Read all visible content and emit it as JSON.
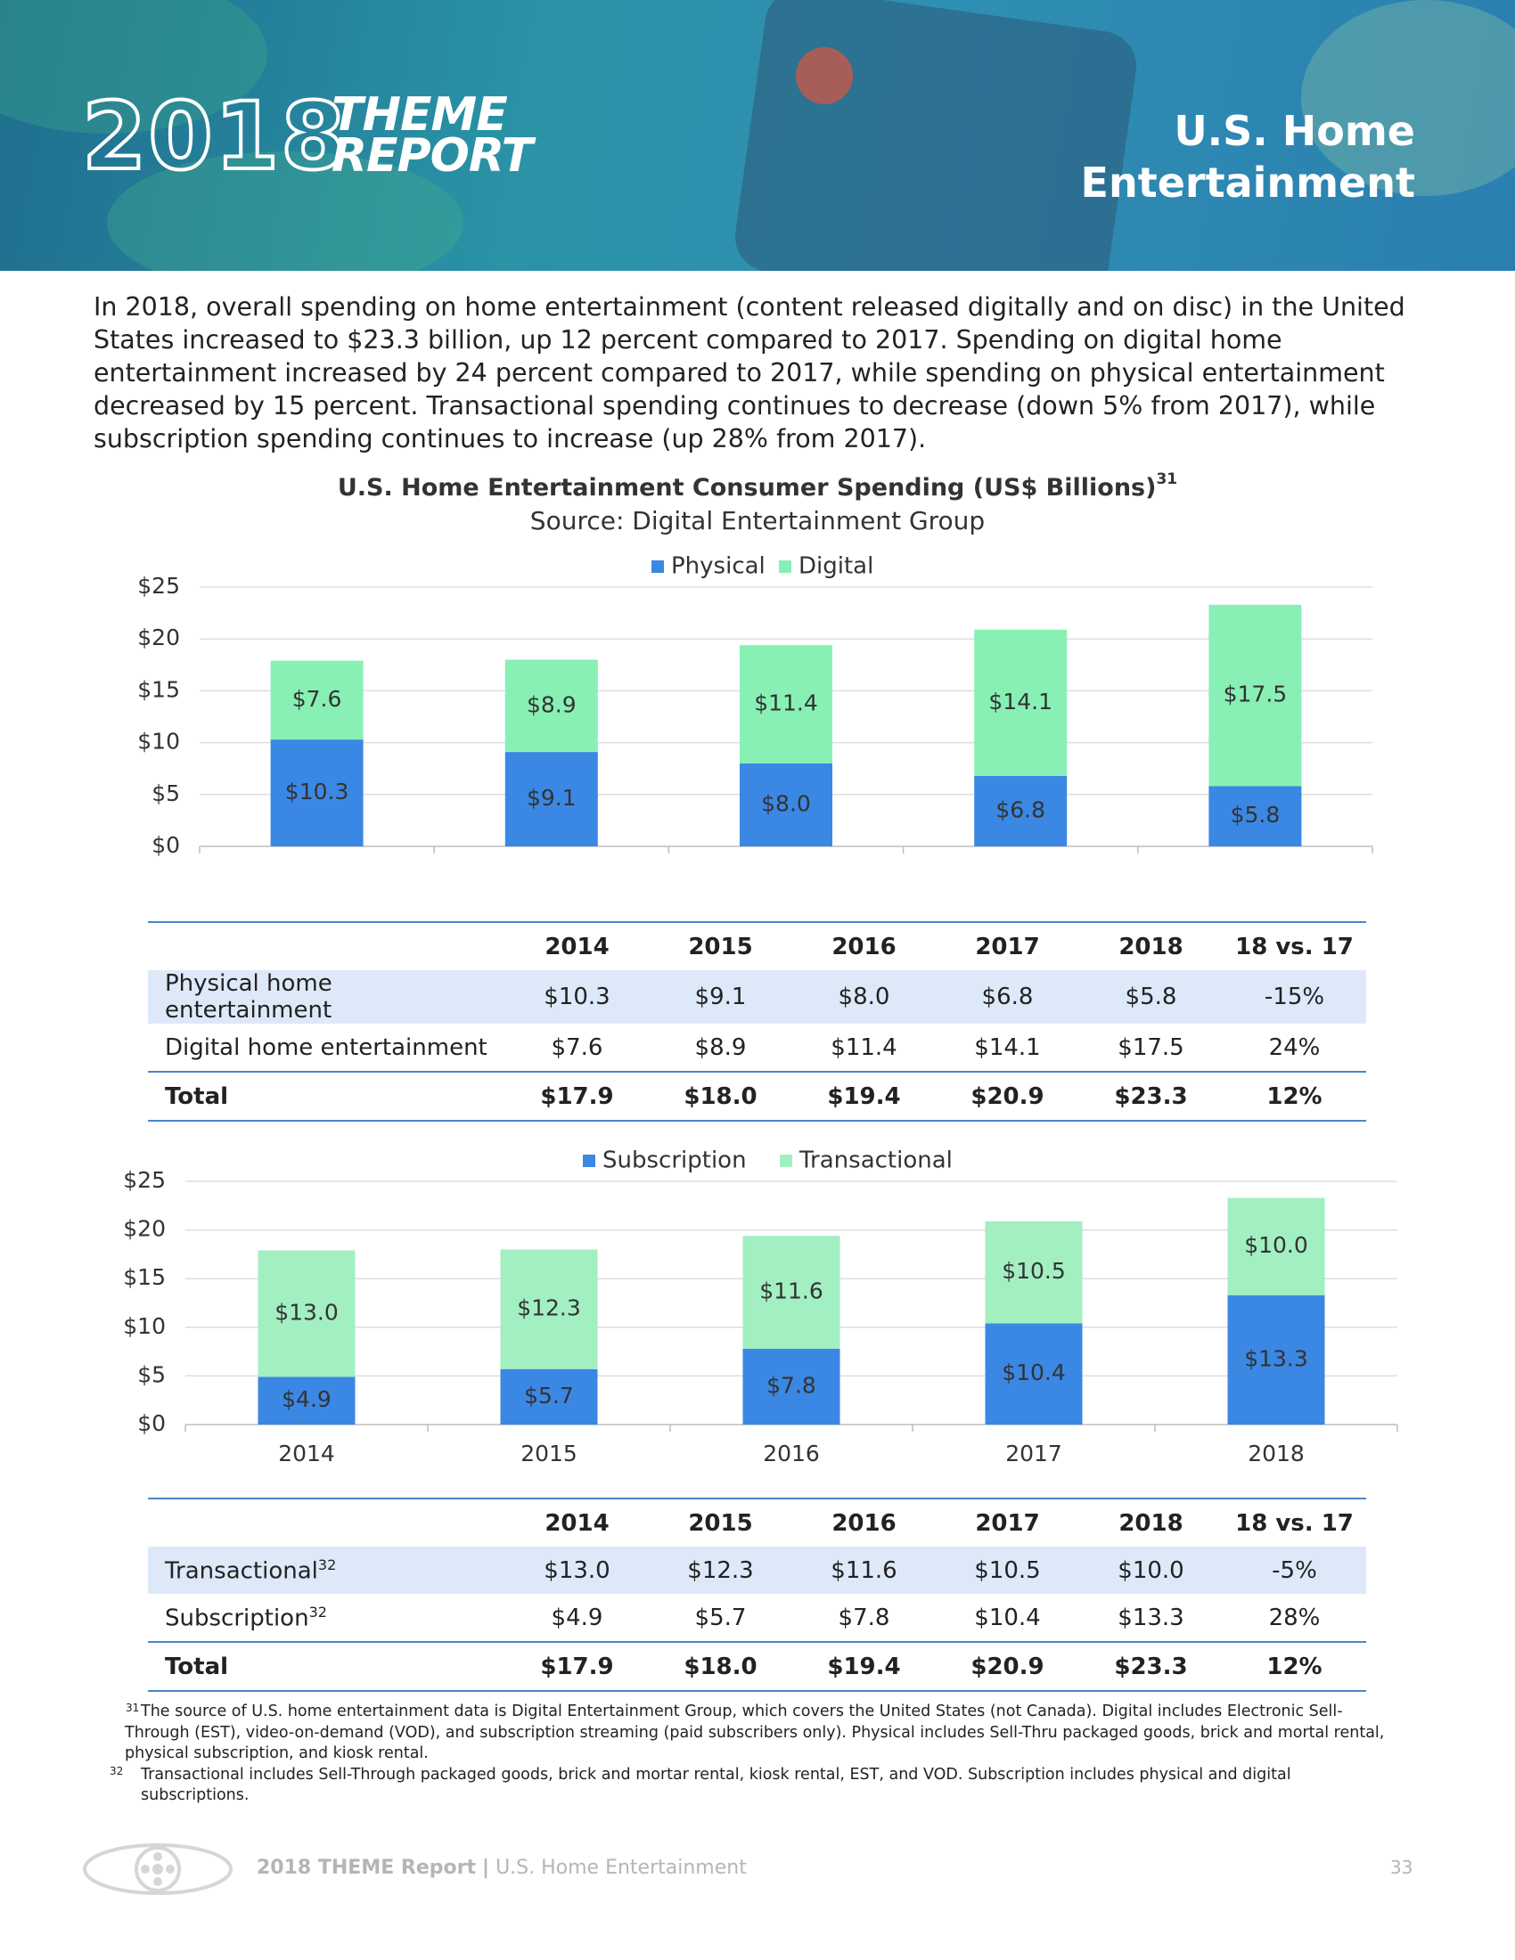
{
  "header": {
    "logo_year": "2018",
    "logo_words": [
      "THEME",
      "REPORT"
    ],
    "section_title": [
      "U.S. Home",
      "Entertainment"
    ]
  },
  "intro": "In 2018, overall spending on home entertainment (content released digitally and on disc) in the United States increased to $23.3 billion, up 12 percent compared to 2017. Spending on digital home entertainment increased by 24 percent compared to 2017, while spending on physical entertainment decreased by 15 percent. Transactional spending continues to decrease (down 5% from 2017), while subscription spending continues to increase (up 28% from 2017).",
  "chart_data": [
    {
      "type": "bar",
      "stacked": true,
      "title": "U.S. Home Entertainment Consumer Spending (US$ Billions)",
      "title_superscript": "31",
      "subtitle": "Source: Digital Entertainment Group",
      "categories": [
        null,
        null,
        null,
        null,
        null
      ],
      "series": [
        {
          "name": "Physical",
          "color": "#3b87e4",
          "values": [
            10.3,
            9.1,
            8.0,
            6.8,
            5.8
          ],
          "value_labels": [
            "$10.3",
            "$9.1",
            "$8.0",
            "$6.8",
            "$5.8"
          ]
        },
        {
          "name": "Digital",
          "color": "#88f0b4",
          "values": [
            7.6,
            8.9,
            11.4,
            14.1,
            17.5
          ],
          "value_labels": [
            "$7.6",
            "$8.9",
            "$11.4",
            "$14.1",
            "$17.5"
          ]
        }
      ],
      "ylim": [
        0,
        25
      ],
      "yticks": [
        {
          "value": 0,
          "label": "$0"
        },
        {
          "value": 5,
          "label": "$5"
        },
        {
          "value": 10,
          "label": "$10"
        },
        {
          "value": 15,
          "label": "$15"
        },
        {
          "value": 20,
          "label": "$20"
        },
        {
          "value": 25,
          "label": "$25"
        }
      ],
      "grid": true,
      "legend": "top"
    },
    {
      "type": "bar",
      "stacked": true,
      "categories": [
        "2014",
        "2015",
        "2016",
        "2017",
        "2018"
      ],
      "series": [
        {
          "name": "Subscription",
          "color": "#3b87e4",
          "values": [
            4.9,
            5.7,
            7.8,
            10.4,
            13.3
          ],
          "value_labels": [
            "$4.9",
            "$5.7",
            "$7.8",
            "$10.4",
            "$13.3"
          ]
        },
        {
          "name": "Transactional",
          "color": "#a2efc2",
          "values": [
            13.0,
            12.3,
            11.6,
            10.5,
            10.0
          ],
          "value_labels": [
            "$13.0",
            "$12.3",
            "$11.6",
            "$10.5",
            "$10.0"
          ]
        }
      ],
      "ylim": [
        0,
        25
      ],
      "yticks": [
        {
          "value": 0,
          "label": "$0"
        },
        {
          "value": 5,
          "label": "$5"
        },
        {
          "value": 10,
          "label": "$10"
        },
        {
          "value": 15,
          "label": "$15"
        },
        {
          "value": 20,
          "label": "$20"
        },
        {
          "value": 25,
          "label": "$25"
        }
      ],
      "grid": true,
      "legend": "top"
    }
  ],
  "tables": [
    {
      "columns": [
        "2014",
        "2015",
        "2016",
        "2017",
        "2018",
        "18 vs. 17"
      ],
      "rows": [
        {
          "label": "Physical home entertainment",
          "values": [
            "$10.3",
            "$9.1",
            "$8.0",
            "$6.8",
            "$5.8",
            "-15%"
          ]
        },
        {
          "label": "Digital home entertainment",
          "values": [
            "$7.6",
            "$8.9",
            "$11.4",
            "$14.1",
            "$17.5",
            "24%"
          ]
        },
        {
          "label": "Total",
          "values": [
            "$17.9",
            "$18.0",
            "$19.4",
            "$20.9",
            "$23.3",
            "12%"
          ]
        }
      ]
    },
    {
      "columns": [
        "2014",
        "2015",
        "2016",
        "2017",
        "2018",
        "18 vs. 17"
      ],
      "rows": [
        {
          "label": "Transactional",
          "note": "32",
          "values": [
            "$13.0",
            "$12.3",
            "$11.6",
            "$10.5",
            "$10.0",
            "-5%"
          ]
        },
        {
          "label": "Subscription",
          "note": "32",
          "values": [
            "$4.9",
            "$5.7",
            "$7.8",
            "$10.4",
            "$13.3",
            "28%"
          ]
        },
        {
          "label": "Total",
          "values": [
            "$17.9",
            "$18.0",
            "$19.4",
            "$20.9",
            "$23.3",
            "12%"
          ]
        }
      ]
    }
  ],
  "footnotes": [
    {
      "number": "31",
      "text": "The source of U.S. home entertainment data is Digital Entertainment Group, which covers the United States (not Canada). Digital includes Electronic Sell-Through (EST), video-on-demand (VOD), and subscription streaming (paid subscribers only). Physical includes Sell-Thru packaged goods, brick and mortal rental, physical subscription, and kiosk rental."
    },
    {
      "number": "32",
      "text": "Transactional includes Sell-Through packaged goods, brick and mortar rental, kiosk rental, EST, and VOD. Subscription includes physical and digital subscriptions."
    }
  ],
  "footer": {
    "report": "2018 THEME Report",
    "separator": "|",
    "section": "U.S. Home Entertainment",
    "page": "33"
  }
}
